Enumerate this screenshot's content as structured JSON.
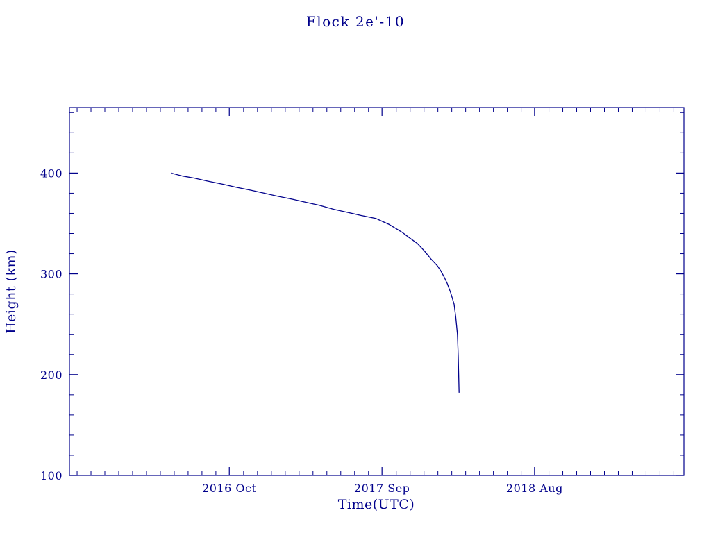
{
  "colors": {
    "accent": "#00008B",
    "background": "#ffffff",
    "line": "#00008B"
  },
  "chart_data": {
    "type": "line",
    "title": "Flock 2e'-10",
    "xlabel": "Time(UTC)",
    "ylabel": "Height (km)",
    "xlim": [
      2015.79,
      2019.48
    ],
    "ylim": [
      100,
      465
    ],
    "grid": false,
    "legend": "none",
    "x_ticks": [
      {
        "value": 2016.75,
        "label": "2016 Oct"
      },
      {
        "value": 2017.667,
        "label": "2017 Sep"
      },
      {
        "value": 2018.583,
        "label": "2018 Aug"
      }
    ],
    "y_ticks": [
      {
        "value": 100,
        "label": "100"
      },
      {
        "value": 200,
        "label": "200"
      },
      {
        "value": 300,
        "label": "300"
      },
      {
        "value": 400,
        "label": "400"
      }
    ],
    "minor_x_step": 0.08333,
    "minor_y_step": 20,
    "series": [
      {
        "name": "satellite-height",
        "x": [
          2016.4,
          2016.47,
          2016.54,
          2016.62,
          2016.71,
          2016.79,
          2016.88,
          2016.96,
          2017.04,
          2017.13,
          2017.21,
          2017.29,
          2017.38,
          2017.46,
          2017.54,
          2017.63,
          2017.67,
          2017.71,
          2017.75,
          2017.79,
          2017.83,
          2017.88,
          2017.92,
          2017.96,
          2018.0,
          2018.02,
          2018.04,
          2018.06,
          2018.08,
          2018.1,
          2018.11,
          2018.12,
          2018.125,
          2018.13
        ],
        "y": [
          400,
          397,
          395,
          392,
          389,
          386,
          383,
          380,
          377,
          374,
          371,
          368,
          364,
          361,
          358,
          355,
          352,
          349,
          345,
          341,
          336,
          330,
          323,
          315,
          308,
          303,
          297,
          290,
          281,
          270,
          257,
          240,
          218,
          182
        ]
      }
    ]
  }
}
